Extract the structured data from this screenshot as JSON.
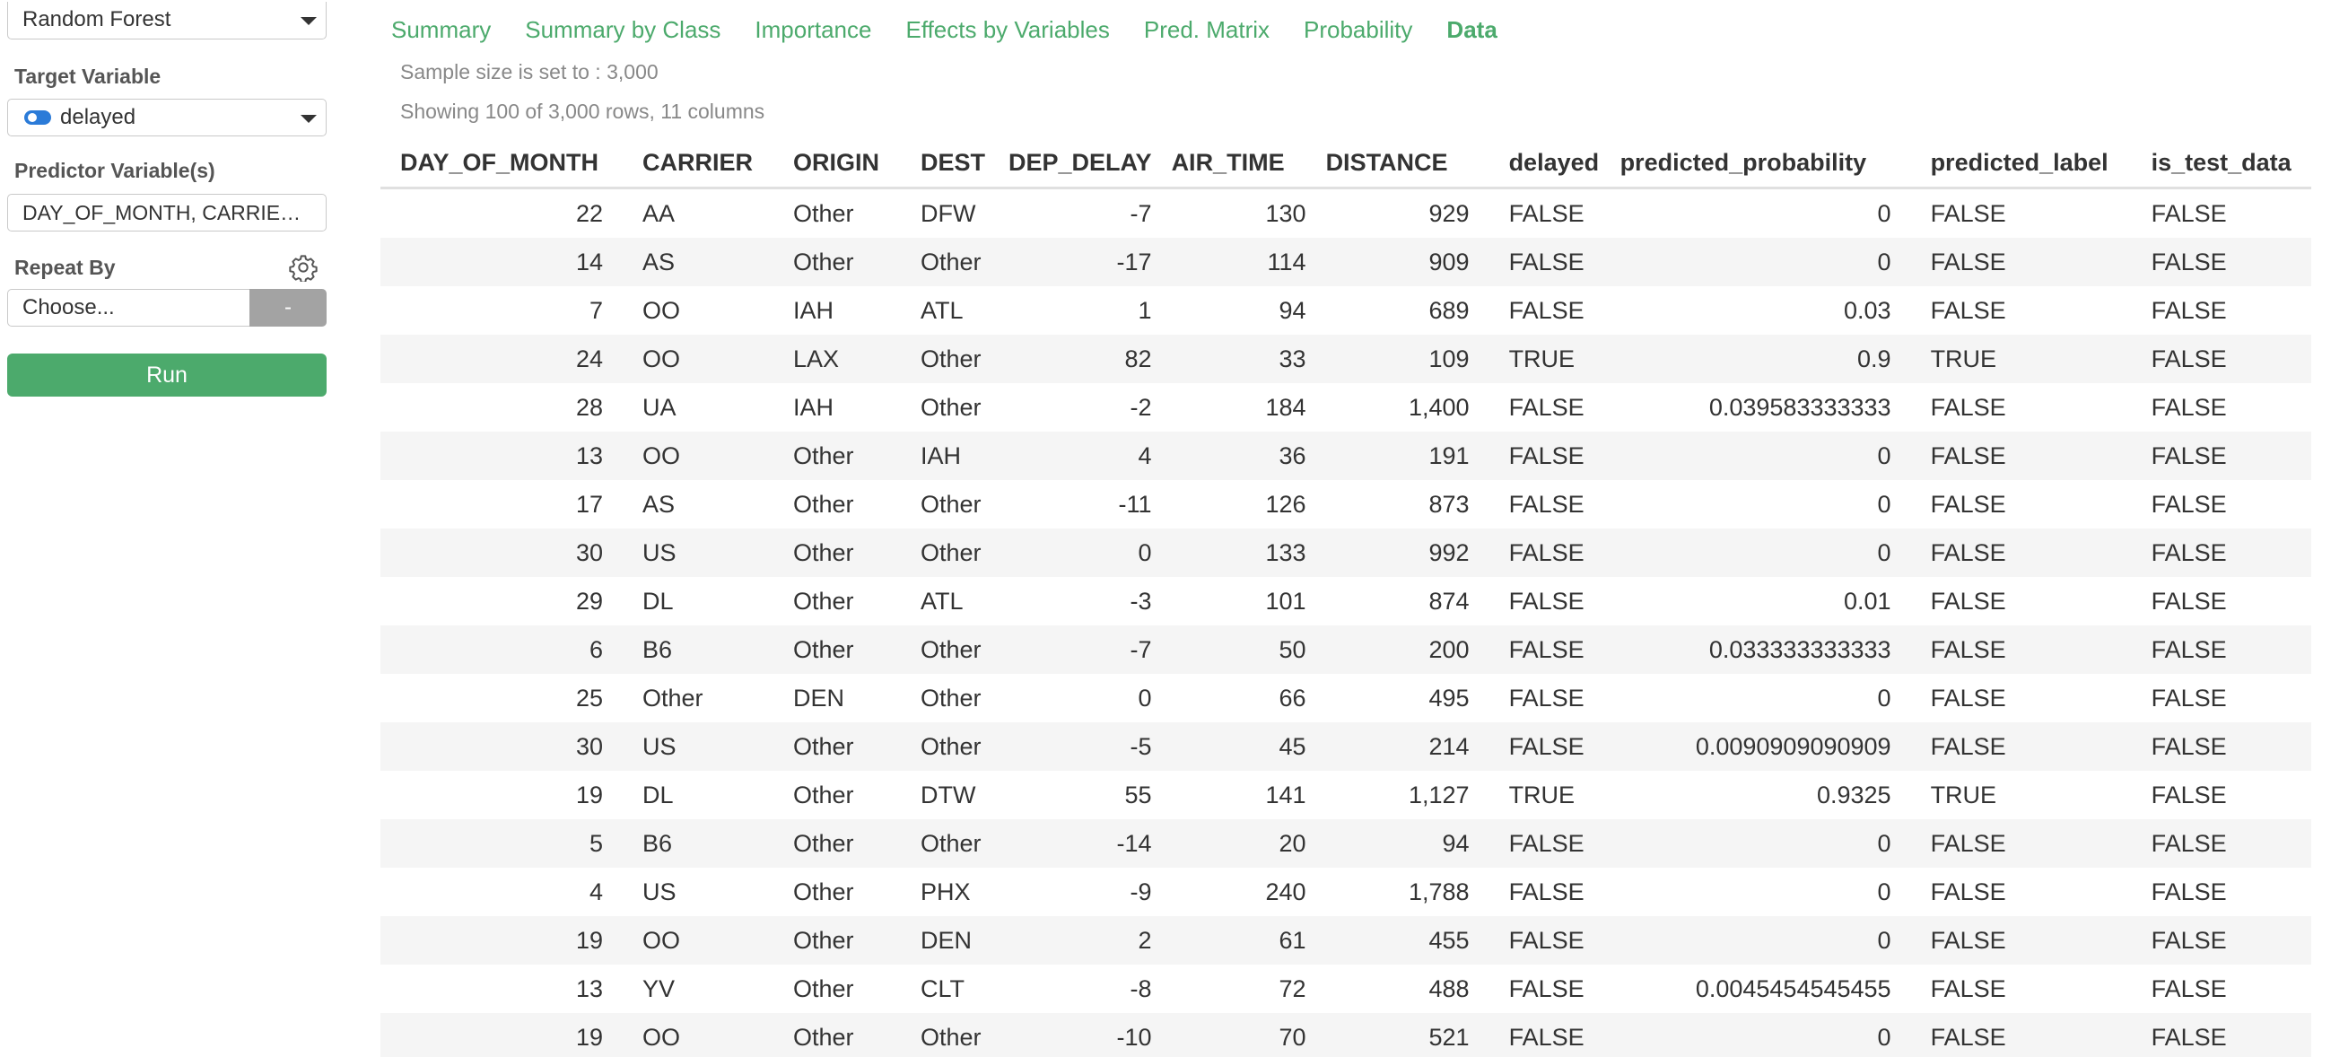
{
  "sidebar": {
    "model_select": "Random Forest",
    "target_label": "Target Variable",
    "target_value": "delayed",
    "predictor_label": "Predictor Variable(s)",
    "predictor_value": "DAY_OF_MONTH, CARRIE…",
    "repeat_label": "Repeat By",
    "repeat_placeholder": "Choose...",
    "repeat_dash": "-",
    "run_label": "Run"
  },
  "tabs": [
    "Summary",
    "Summary by Class",
    "Importance",
    "Effects by Variables",
    "Pred. Matrix",
    "Probability",
    "Data"
  ],
  "active_tab": "Data",
  "info": {
    "sample_size": "Sample size is set to : 3,000",
    "showing": "Showing 100 of 3,000 rows, 11 columns"
  },
  "table": {
    "columns": [
      "DAY_OF_MONTH",
      "CARRIER",
      "ORIGIN",
      "DEST",
      "DEP_DELAY",
      "AIR_TIME",
      "DISTANCE",
      "delayed",
      "predicted_probability",
      "predicted_label",
      "is_test_data"
    ],
    "rows": [
      [
        "22",
        "AA",
        "Other",
        "DFW",
        "-7",
        "130",
        "929",
        "FALSE",
        "0",
        "FALSE",
        "FALSE"
      ],
      [
        "14",
        "AS",
        "Other",
        "Other",
        "-17",
        "114",
        "909",
        "FALSE",
        "0",
        "FALSE",
        "FALSE"
      ],
      [
        "7",
        "OO",
        "IAH",
        "ATL",
        "1",
        "94",
        "689",
        "FALSE",
        "0.03",
        "FALSE",
        "FALSE"
      ],
      [
        "24",
        "OO",
        "LAX",
        "Other",
        "82",
        "33",
        "109",
        "TRUE",
        "0.9",
        "TRUE",
        "FALSE"
      ],
      [
        "28",
        "UA",
        "IAH",
        "Other",
        "-2",
        "184",
        "1,400",
        "FALSE",
        "0.039583333333",
        "FALSE",
        "FALSE"
      ],
      [
        "13",
        "OO",
        "Other",
        "IAH",
        "4",
        "36",
        "191",
        "FALSE",
        "0",
        "FALSE",
        "FALSE"
      ],
      [
        "17",
        "AS",
        "Other",
        "Other",
        "-11",
        "126",
        "873",
        "FALSE",
        "0",
        "FALSE",
        "FALSE"
      ],
      [
        "30",
        "US",
        "Other",
        "Other",
        "0",
        "133",
        "992",
        "FALSE",
        "0",
        "FALSE",
        "FALSE"
      ],
      [
        "29",
        "DL",
        "Other",
        "ATL",
        "-3",
        "101",
        "874",
        "FALSE",
        "0.01",
        "FALSE",
        "FALSE"
      ],
      [
        "6",
        "B6",
        "Other",
        "Other",
        "-7",
        "50",
        "200",
        "FALSE",
        "0.033333333333",
        "FALSE",
        "FALSE"
      ],
      [
        "25",
        "Other",
        "DEN",
        "Other",
        "0",
        "66",
        "495",
        "FALSE",
        "0",
        "FALSE",
        "FALSE"
      ],
      [
        "30",
        "US",
        "Other",
        "Other",
        "-5",
        "45",
        "214",
        "FALSE",
        "0.0090909090909",
        "FALSE",
        "FALSE"
      ],
      [
        "19",
        "DL",
        "Other",
        "DTW",
        "55",
        "141",
        "1,127",
        "TRUE",
        "0.9325",
        "TRUE",
        "FALSE"
      ],
      [
        "5",
        "B6",
        "Other",
        "Other",
        "-14",
        "20",
        "94",
        "FALSE",
        "0",
        "FALSE",
        "FALSE"
      ],
      [
        "4",
        "US",
        "Other",
        "PHX",
        "-9",
        "240",
        "1,788",
        "FALSE",
        "0",
        "FALSE",
        "FALSE"
      ],
      [
        "19",
        "OO",
        "Other",
        "DEN",
        "2",
        "61",
        "455",
        "FALSE",
        "0",
        "FALSE",
        "FALSE"
      ],
      [
        "13",
        "YV",
        "Other",
        "CLT",
        "-8",
        "72",
        "488",
        "FALSE",
        "0.0045454545455",
        "FALSE",
        "FALSE"
      ],
      [
        "19",
        "OO",
        "Other",
        "Other",
        "-10",
        "70",
        "521",
        "FALSE",
        "0",
        "FALSE",
        "FALSE"
      ]
    ]
  },
  "colors": {
    "accent": "#4caa6c",
    "toggle": "#2b7bd8"
  }
}
